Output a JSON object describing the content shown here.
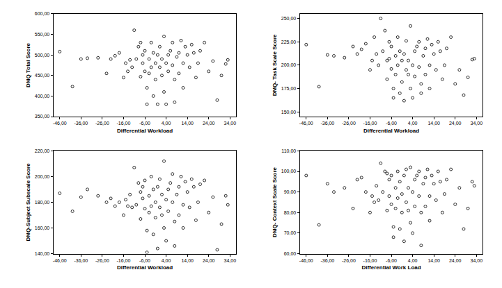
{
  "chart_data": [
    {
      "type": "scatter",
      "marker": "circle-open",
      "color": "#000000",
      "grid": false,
      "y_label": "DMQ Total Score",
      "x_label": "Differential Workload",
      "x": [
        -46,
        -40,
        -36,
        -33,
        -28,
        -24,
        -22,
        -20,
        -18,
        -16,
        -15,
        -14,
        -13,
        -12,
        -11,
        -10,
        -9,
        -8,
        -8,
        -7,
        -7,
        -6,
        -6,
        -5,
        -5,
        -4,
        -4,
        -3,
        -3,
        -2,
        -2,
        -1,
        -1,
        0,
        0,
        1,
        1,
        2,
        2,
        3,
        3,
        4,
        4,
        5,
        5,
        6,
        7,
        7,
        8,
        8,
        9,
        10,
        10,
        11,
        12,
        12,
        13,
        14,
        15,
        16,
        17,
        18,
        19,
        20,
        22,
        24,
        26,
        28,
        32,
        33,
        30
      ],
      "values": [
        508,
        423,
        490,
        492,
        493,
        455,
        490,
        498,
        505,
        445,
        480,
        460,
        488,
        470,
        560,
        490,
        520,
        530,
        447,
        480,
        500,
        460,
        510,
        420,
        380,
        490,
        455,
        470,
        530,
        505,
        400,
        480,
        440,
        500,
        380,
        470,
        520,
        490,
        450,
        545,
        410,
        480,
        380,
        500,
        460,
        510,
        475,
        530,
        440,
        385,
        495,
        505,
        455,
        535,
        480,
        420,
        520,
        500,
        470,
        525,
        505,
        445,
        480,
        510,
        530,
        460,
        485,
        390,
        478,
        488,
        450
      ],
      "xlim": [
        -49,
        37
      ],
      "xticks": [
        {
          "value": -46,
          "label": "-46,00"
        },
        {
          "value": -36,
          "label": "-36,00"
        },
        {
          "value": -26,
          "label": "-26,00"
        },
        {
          "value": -16,
          "label": "-16,00"
        },
        {
          "value": -6,
          "label": "-6,00"
        },
        {
          "value": 4,
          "label": "4,00"
        },
        {
          "value": 14,
          "label": "14,00"
        },
        {
          "value": 24,
          "label": "24,00"
        },
        {
          "value": 34,
          "label": "34,00"
        }
      ],
      "ylim": [
        350,
        600
      ],
      "yticks": [
        {
          "value": 350,
          "label": "350,00"
        },
        {
          "value": 400,
          "label": "400,00"
        },
        {
          "value": 450,
          "label": "450,00"
        },
        {
          "value": 500,
          "label": "500,00"
        },
        {
          "value": 550,
          "label": "550,00"
        },
        {
          "value": 600,
          "label": "600,00"
        }
      ]
    },
    {
      "type": "scatter",
      "marker": "circle-open",
      "color": "#000000",
      "grid": false,
      "y_label": "DMQ- Task Scale Score",
      "x_label": "Differential Workload",
      "x": [
        -46,
        -40,
        -36,
        -33,
        -28,
        -24,
        -22,
        -20,
        -18,
        -16,
        -15,
        -14,
        -13,
        -12,
        -11,
        -10,
        -9,
        -8,
        -8,
        -7,
        -7,
        -6,
        -6,
        -5,
        -5,
        -4,
        -4,
        -3,
        -3,
        -2,
        -2,
        -1,
        -1,
        0,
        0,
        1,
        1,
        2,
        2,
        3,
        3,
        4,
        4,
        5,
        5,
        6,
        7,
        7,
        8,
        8,
        9,
        10,
        10,
        11,
        12,
        12,
        13,
        14,
        15,
        16,
        17,
        18,
        19,
        20,
        22,
        24,
        26,
        28,
        32,
        33,
        30
      ],
      "values": [
        222,
        177,
        211,
        210,
        208,
        220,
        212,
        217,
        223,
        195,
        205,
        230,
        212,
        200,
        250,
        215,
        237,
        205,
        185,
        225,
        207,
        196,
        220,
        175,
        165,
        210,
        190,
        200,
        230,
        215,
        170,
        205,
        182,
        212,
        162,
        195,
        226,
        205,
        190,
        242,
        175,
        200,
        165,
        215,
        188,
        220,
        198,
        225,
        180,
        170,
        210,
        218,
        190,
        228,
        200,
        175,
        222,
        212,
        195,
        225,
        215,
        185,
        200,
        218,
        230,
        180,
        195,
        168,
        206,
        207,
        187
      ],
      "xlim": [
        -49,
        37
      ],
      "xticks": [
        {
          "value": -46,
          "label": "-46,00"
        },
        {
          "value": -36,
          "label": "-36,00"
        },
        {
          "value": -26,
          "label": "-26,00"
        },
        {
          "value": -16,
          "label": "-16,00"
        },
        {
          "value": -6,
          "label": "-6,00"
        },
        {
          "value": 4,
          "label": "4,00"
        },
        {
          "value": 14,
          "label": "14,00"
        },
        {
          "value": 24,
          "label": "24,00"
        },
        {
          "value": 34,
          "label": "34,00"
        }
      ],
      "ylim": [
        145,
        255
      ],
      "yticks": [
        {
          "value": 150,
          "label": "150,00"
        },
        {
          "value": 175,
          "label": "175,00"
        },
        {
          "value": 200,
          "label": "200,00"
        },
        {
          "value": 225,
          "label": "225,00"
        },
        {
          "value": 250,
          "label": "250,00"
        }
      ]
    },
    {
      "type": "scatter",
      "marker": "circle-open",
      "color": "#000000",
      "grid": false,
      "y_label": "DMQ-Subject Subscale Score",
      "x_label": "Differential Workload",
      "x": [
        -46,
        -40,
        -36,
        -33,
        -28,
        -24,
        -22,
        -20,
        -18,
        -16,
        -15,
        -14,
        -13,
        -12,
        -11,
        -10,
        -9,
        -8,
        -8,
        -7,
        -7,
        -6,
        -6,
        -5,
        -5,
        -4,
        -4,
        -3,
        -3,
        -2,
        -2,
        -1,
        -1,
        0,
        0,
        1,
        1,
        2,
        2,
        3,
        3,
        4,
        4,
        5,
        5,
        6,
        7,
        7,
        8,
        8,
        9,
        10,
        10,
        11,
        12,
        12,
        13,
        14,
        15,
        16,
        17,
        18,
        19,
        20,
        22,
        24,
        26,
        28,
        32,
        33,
        30
      ],
      "values": [
        187,
        173,
        184,
        190,
        185,
        180,
        183,
        177,
        180,
        170,
        182,
        177,
        186,
        176,
        207,
        178,
        195,
        188,
        167,
        183,
        192,
        175,
        197,
        158,
        141,
        185,
        172,
        177,
        200,
        190,
        155,
        180,
        168,
        192,
        144,
        176,
        198,
        186,
        170,
        212,
        160,
        182,
        150,
        190,
        173,
        195,
        180,
        202,
        165,
        146,
        186,
        192,
        170,
        200,
        178,
        160,
        196,
        188,
        176,
        198,
        192,
        166,
        180,
        194,
        197,
        172,
        184,
        143,
        185,
        178,
        163
      ],
      "xlim": [
        -49,
        37
      ],
      "xticks": [
        {
          "value": -46,
          "label": "-46,00"
        },
        {
          "value": -36,
          "label": "-36,00"
        },
        {
          "value": -26,
          "label": "-26,00"
        },
        {
          "value": -16,
          "label": "-16,00"
        },
        {
          "value": -6,
          "label": "-6,00"
        },
        {
          "value": 4,
          "label": "4,00"
        },
        {
          "value": 14,
          "label": "14,00"
        },
        {
          "value": 24,
          "label": "24,00"
        },
        {
          "value": 34,
          "label": "34,00"
        }
      ],
      "ylim": [
        140,
        220
      ],
      "yticks": [
        {
          "value": 140,
          "label": "140,00"
        },
        {
          "value": 160,
          "label": "160,00"
        },
        {
          "value": 180,
          "label": "180,00"
        },
        {
          "value": 200,
          "label": "200,00"
        },
        {
          "value": 220,
          "label": "220,00"
        }
      ]
    },
    {
      "type": "scatter",
      "marker": "circle-open",
      "color": "#000000",
      "grid": false,
      "y_label": "DMQ- Context Scale Score",
      "x_label": "Differential Work Load",
      "x": [
        -46,
        -40,
        -36,
        -33,
        -28,
        -24,
        -22,
        -20,
        -18,
        -16,
        -15,
        -14,
        -13,
        -12,
        -11,
        -10,
        -9,
        -8,
        -8,
        -7,
        -7,
        -6,
        -6,
        -5,
        -5,
        -4,
        -4,
        -3,
        -3,
        -2,
        -2,
        -1,
        -1,
        0,
        0,
        1,
        1,
        2,
        2,
        3,
        3,
        4,
        4,
        5,
        5,
        6,
        7,
        7,
        8,
        8,
        9,
        10,
        10,
        11,
        12,
        12,
        13,
        14,
        15,
        16,
        17,
        18,
        19,
        20,
        22,
        24,
        26,
        28,
        32,
        33,
        30
      ],
      "values": [
        98,
        74,
        94,
        90,
        92,
        82,
        96,
        97,
        90,
        80,
        88,
        85,
        93,
        86,
        104,
        90,
        100,
        99,
        81,
        88,
        96,
        84,
        98,
        73,
        68,
        92,
        82,
        87,
        100,
        95,
        72,
        89,
        80,
        98,
        66,
        85,
        101,
        92,
        81,
        102,
        75,
        90,
        70,
        96,
        83,
        98,
        88,
        100,
        80,
        64,
        94,
        97,
        83,
        101,
        88,
        76,
        98,
        94,
        86,
        100,
        95,
        80,
        89,
        96,
        101,
        84,
        92,
        72,
        95,
        93,
        82
      ],
      "xlim": [
        -49,
        37
      ],
      "xticks": [
        {
          "value": -46,
          "label": "-46,00"
        },
        {
          "value": -36,
          "label": "-36,00"
        },
        {
          "value": -26,
          "label": "-26,00"
        },
        {
          "value": -16,
          "label": "-16,00"
        },
        {
          "value": -6,
          "label": "-6,00"
        },
        {
          "value": 4,
          "label": "4,00"
        },
        {
          "value": 14,
          "label": "14,00"
        },
        {
          "value": 24,
          "label": "24,00"
        },
        {
          "value": 34,
          "label": "34,00"
        }
      ],
      "ylim": [
        60,
        110
      ],
      "yticks": [
        {
          "value": 60,
          "label": "60,00"
        },
        {
          "value": 70,
          "label": "70,00"
        },
        {
          "value": 80,
          "label": "80,00"
        },
        {
          "value": 90,
          "label": "90,00"
        },
        {
          "value": 100,
          "label": "100,00"
        },
        {
          "value": 110,
          "label": "110,00"
        }
      ]
    }
  ]
}
